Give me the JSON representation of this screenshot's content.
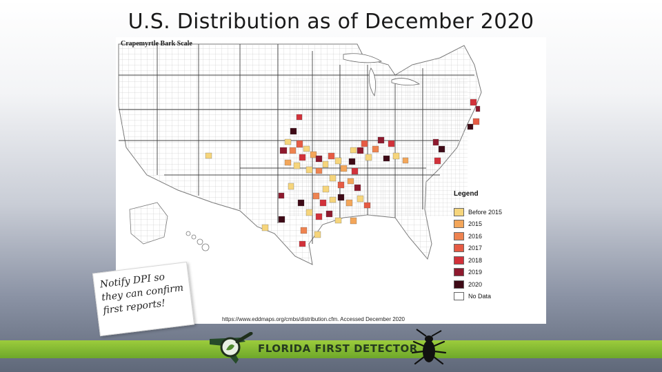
{
  "slide": {
    "title": "U.S. Distribution as of December 2020"
  },
  "map": {
    "caption": "Crapemyrtle Bark Scale",
    "source": "https://www.eddmaps.org/cmbs/distribution.cfm. Accessed December 2020",
    "legend": {
      "title": "Legend",
      "items": [
        {
          "label": "Before 2015",
          "color": "#f6d57c"
        },
        {
          "label": "2015",
          "color": "#f3a65a"
        },
        {
          "label": "2016",
          "color": "#ee8350"
        },
        {
          "label": "2017",
          "color": "#e65b44"
        },
        {
          "label": "2018",
          "color": "#d2313a"
        },
        {
          "label": "2019",
          "color": "#8e1a2e"
        },
        {
          "label": "2020",
          "color": "#3e0a16"
        },
        {
          "label": "No Data",
          "color": "#ffffff"
        }
      ]
    }
  },
  "note": {
    "lines": [
      "Notify DPI so",
      "they can confirm",
      "first reports!"
    ]
  },
  "footer": {
    "brand": "FLORIDA FIRST DETECTOR",
    "band_color": "#8dc03a"
  }
}
